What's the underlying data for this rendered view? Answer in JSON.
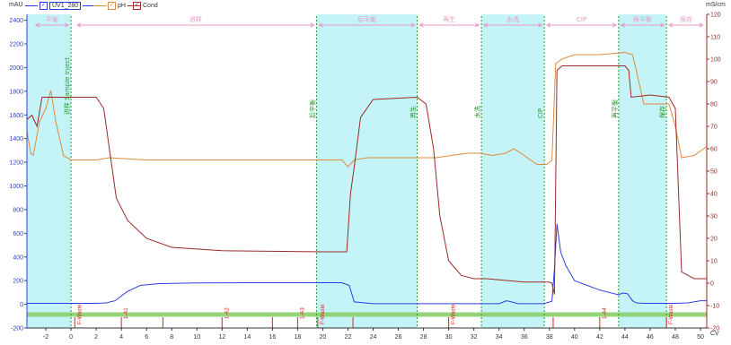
{
  "legend": {
    "left_unit": "mAU",
    "right_unit": "mS/cm",
    "series": [
      {
        "name": "UV1_280",
        "color": "#2a3fe0",
        "checked": true,
        "selected": true
      },
      {
        "name": "pH",
        "color": "#e08a3c",
        "checked": true,
        "selected": false
      },
      {
        "name": "Cond",
        "color": "#9b2a2a",
        "checked": true,
        "selected": false
      }
    ]
  },
  "chart_data": {
    "type": "line",
    "xlabel": "CV",
    "xlim": [
      -3.5,
      50.5
    ],
    "x_ticks": [
      -2,
      0,
      2,
      4,
      6,
      8,
      10,
      12,
      14,
      16,
      18,
      20,
      22,
      24,
      26,
      28,
      30,
      32,
      34,
      36,
      38,
      40,
      42,
      44,
      46,
      48,
      50
    ],
    "y_left": {
      "unit": "mAU",
      "lim": [
        -200,
        2450
      ],
      "ticks": [
        -200,
        0,
        200,
        400,
        600,
        800,
        1000,
        1200,
        1400,
        1600,
        1800,
        2000,
        2200,
        2400
      ]
    },
    "y_right": {
      "unit": "mS/cm",
      "lim": [
        -20,
        120
      ],
      "ticks": [
        -20,
        -10,
        0,
        10,
        20,
        30,
        40,
        50,
        60,
        70,
        80,
        90,
        100,
        110,
        120
      ]
    },
    "shaded_regions": [
      {
        "x0": -3.5,
        "x1": 0,
        "color": "#c4f4f7"
      },
      {
        "x0": 19.5,
        "x1": 27.5,
        "color": "#c4f4f7"
      },
      {
        "x0": 32.6,
        "x1": 37.6,
        "color": "#c4f4f7"
      },
      {
        "x0": 43.5,
        "x1": 47.3,
        "color": "#c4f4f7"
      }
    ],
    "phases": [
      {
        "label": "平衡",
        "x0": -2.8,
        "x1": -0.2
      },
      {
        "label": "进样",
        "x0": 0.5,
        "x1": 19.3
      },
      {
        "label": "后平衡",
        "x0": 19.7,
        "x1": 27.3
      },
      {
        "label": "再生",
        "x0": 27.7,
        "x1": 32.4
      },
      {
        "label": "水洗",
        "x0": 32.8,
        "x1": 37.4
      },
      {
        "label": "CIP",
        "x0": 37.8,
        "x1": 43.3
      },
      {
        "label": "再平衡",
        "x0": 43.7,
        "x1": 47.1
      },
      {
        "label": "保存",
        "x0": 47.5,
        "x1": 50.2
      }
    ],
    "events": [
      {
        "x": 0,
        "label": "进样 Sample Inject",
        "color": "#2a9a2a"
      },
      {
        "x": 19.5,
        "label": "后平衡",
        "color": "#2a9a2a"
      },
      {
        "x": 27.5,
        "label": "再生",
        "color": "#2a9a2a"
      },
      {
        "x": 32.6,
        "label": "水洗",
        "color": "#2a9a2a"
      },
      {
        "x": 37.6,
        "label": "CIP",
        "color": "#2a9a2a"
      },
      {
        "x": 43.5,
        "label": "再平衡",
        "color": "#2a9a2a"
      },
      {
        "x": 47.3,
        "label": "保存",
        "color": "#2a9a2a"
      }
    ],
    "fractions": [
      {
        "x": 0.3,
        "label": "F-Waste"
      },
      {
        "x": 4.0,
        "label": "1-A1"
      },
      {
        "x": 7.3,
        "label": ""
      },
      {
        "x": 12.0,
        "label": "1-A2"
      },
      {
        "x": 16.0,
        "label": ""
      },
      {
        "x": 18.0,
        "label": "1-A3"
      },
      {
        "x": 19.6,
        "label": "F-Waste"
      },
      {
        "x": 22.4,
        "label": ""
      },
      {
        "x": 30.0,
        "label": "F-Waste"
      },
      {
        "x": 38.3,
        "label": ""
      },
      {
        "x": 42.0,
        "label": "1-A4"
      },
      {
        "x": 47.3,
        "label": "F-Waste"
      }
    ],
    "baseline_band": {
      "y0": -15,
      "y1": -13
    },
    "series": [
      {
        "name": "UV1_280",
        "axis": "left",
        "color": "#2a3fe0",
        "x": [
          -3.5,
          -2.0,
          0.0,
          2.0,
          2.8,
          3.5,
          4.5,
          5.5,
          7.0,
          10.0,
          14.0,
          18.0,
          21.5,
          22.1,
          22.5,
          24.0,
          27.5,
          30.0,
          32.0,
          34.0,
          34.6,
          35.0,
          35.5,
          37.5,
          38.2,
          38.4,
          38.6,
          38.9,
          39.3,
          40.0,
          42.0,
          43.5,
          43.8,
          44.2,
          44.6,
          44.9,
          45.5,
          47.0,
          48.0,
          49.0,
          50.0,
          50.5
        ],
        "y": [
          8,
          8,
          8,
          8,
          12,
          30,
          110,
          160,
          175,
          180,
          182,
          182,
          182,
          160,
          20,
          5,
          5,
          5,
          5,
          5,
          30,
          20,
          5,
          5,
          25,
          300,
          680,
          440,
          330,
          200,
          120,
          80,
          95,
          90,
          30,
          12,
          8,
          8,
          8,
          12,
          30,
          30
        ]
      },
      {
        "name": "pH",
        "axis": "right",
        "color": "#e08a3c",
        "x": [
          -3.5,
          -3.2,
          -3.0,
          -2.5,
          -2.0,
          -1.6,
          -1.2,
          -0.6,
          0.0,
          1.0,
          2.0,
          3.0,
          6.0,
          12.0,
          19.0,
          21.5,
          22.0,
          22.5,
          23.5,
          26.0,
          29.0,
          31.5,
          32.5,
          33.5,
          34.5,
          35.2,
          36.0,
          37.0,
          37.8,
          38.2,
          38.5,
          39.0,
          40.0,
          42.0,
          44.0,
          44.6,
          44.9,
          45.5,
          47.5,
          48.0,
          48.5,
          49.5,
          50.5
        ],
        "y": [
          68,
          58,
          57,
          72,
          78,
          86,
          72,
          57,
          55,
          55,
          55,
          56,
          55,
          55,
          55,
          55,
          52,
          55,
          56,
          56,
          56,
          58,
          58,
          57,
          58,
          60,
          57,
          53,
          53,
          55,
          98,
          100,
          102,
          102,
          103,
          102,
          95,
          80,
          80,
          70,
          56,
          57,
          61
        ]
      },
      {
        "name": "Cond",
        "axis": "right",
        "color": "#9b2a2a",
        "x": [
          -3.5,
          -3.1,
          -2.7,
          -2.3,
          -2.0,
          0.0,
          2.0,
          2.6,
          3.0,
          3.6,
          4.5,
          6.0,
          8.0,
          12.0,
          20.0,
          21.4,
          21.9,
          22.2,
          22.5,
          23.0,
          24.0,
          27.5,
          28.2,
          28.8,
          29.3,
          30.0,
          31.0,
          32.0,
          33.0,
          36.0,
          38.0,
          38.2,
          38.4,
          38.6,
          39.0,
          42.0,
          44.0,
          44.3,
          44.5,
          46.0,
          47.5,
          48.0,
          48.5,
          49.5,
          50.5
        ],
        "y": [
          73,
          75,
          70,
          83,
          83,
          83,
          83,
          78,
          62,
          38,
          28,
          20,
          16,
          14.5,
          14,
          14,
          14,
          40,
          52,
          74,
          82,
          83,
          80,
          60,
          30,
          10,
          3.5,
          2,
          2,
          0.5,
          0.5,
          0,
          -5,
          95,
          97,
          97,
          97,
          95,
          83,
          84,
          83,
          78,
          5,
          2,
          2
        ]
      }
    ]
  }
}
